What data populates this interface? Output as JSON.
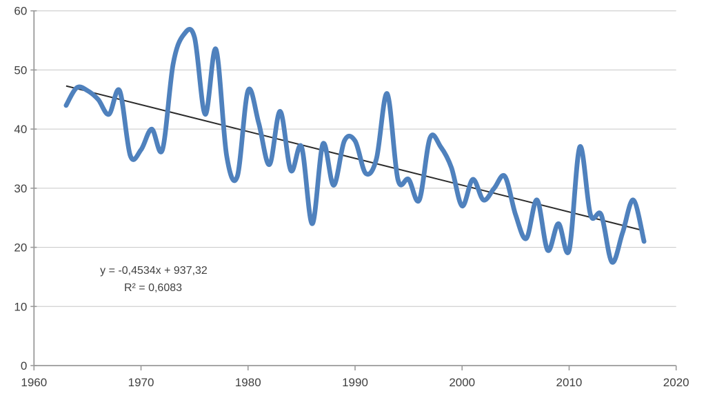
{
  "chart_data": {
    "type": "line",
    "title": "",
    "xlabel": "",
    "ylabel": "",
    "legend": "none",
    "grid": "horizontal",
    "x": [
      1963,
      1964,
      1965,
      1966,
      1967,
      1968,
      1969,
      1970,
      1971,
      1972,
      1973,
      1974,
      1975,
      1976,
      1977,
      1978,
      1979,
      1980,
      1981,
      1982,
      1983,
      1984,
      1985,
      1986,
      1987,
      1988,
      1989,
      1990,
      1991,
      1992,
      1993,
      1994,
      1995,
      1996,
      1997,
      1998,
      1999,
      2000,
      2001,
      2002,
      2003,
      2004,
      2005,
      2006,
      2007,
      2008,
      2009,
      2010,
      2011,
      2012,
      2013,
      2014,
      2015,
      2016,
      2017
    ],
    "values": [
      44,
      47,
      46.5,
      45,
      42.5,
      46.5,
      35.5,
      36.5,
      40,
      36.5,
      51,
      56,
      55.5,
      42.5,
      53.5,
      35.5,
      32,
      46.5,
      41,
      34,
      43,
      33,
      37,
      24,
      37.5,
      30.5,
      38,
      38,
      32.5,
      35,
      46,
      31.5,
      31.5,
      28,
      38.5,
      37,
      33.5,
      27,
      31.5,
      28,
      30,
      32,
      25.5,
      21.5,
      28,
      19.5,
      24,
      19.5,
      37,
      25.5,
      25.5,
      17.5,
      22.5,
      28,
      21
    ],
    "x_axis": {
      "min": 1960,
      "max": 2020,
      "tick_interval": 10,
      "tick_labels": [
        "1960",
        "1970",
        "1980",
        "1990",
        "2000",
        "2010",
        "2020"
      ]
    },
    "y_axis": {
      "min": 0,
      "max": 60,
      "tick_interval": 10,
      "tick_labels": [
        "0",
        "10",
        "20",
        "30",
        "40",
        "50",
        "60"
      ]
    },
    "trendline": {
      "slope": -0.4534,
      "intercept": 937.32,
      "x_start": 1963,
      "x_end": 2017,
      "equation_label": "y = -0,4534x + 937,32",
      "r2_label": "R² = 0,6083"
    },
    "colors": {
      "series": "#4F81BD",
      "trendline": "#2B2B2B",
      "gridline": "#C6C6C6",
      "axis": "#9A9A9A",
      "label_text": "#3F3F3F"
    }
  }
}
